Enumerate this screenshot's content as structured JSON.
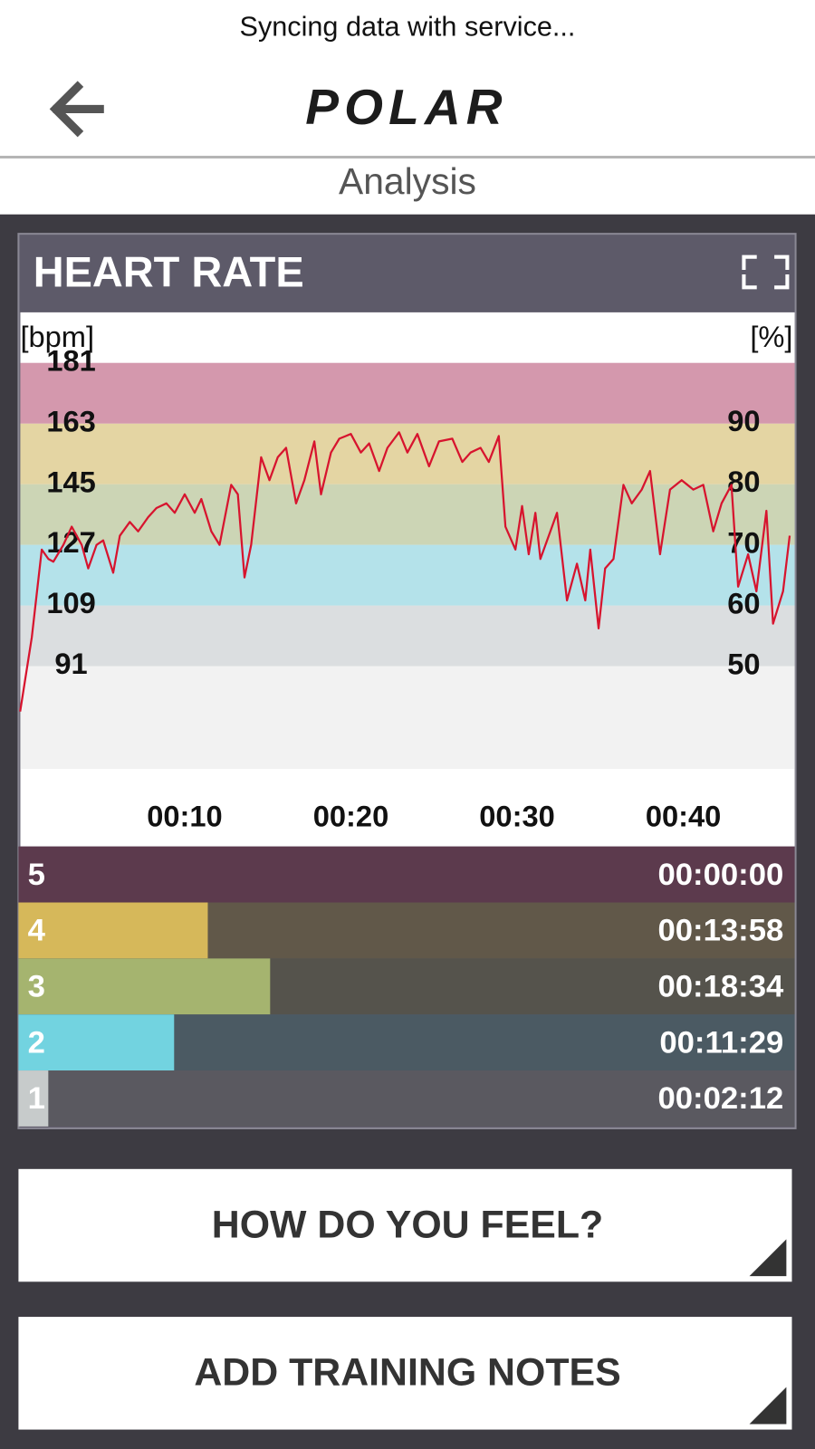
{
  "status": "Syncing data with service...",
  "header": {
    "logo": "POLAR",
    "title": "Analysis"
  },
  "card": {
    "title": "HEART RATE"
  },
  "chart_data": {
    "type": "line",
    "y_label": "[bpm]",
    "y2_label": "[%]",
    "xlim": [
      0,
      46.7
    ],
    "xticks": [
      {
        "value": 10,
        "label": "00:10"
      },
      {
        "value": 20,
        "label": "00:20"
      },
      {
        "value": 30,
        "label": "00:30"
      },
      {
        "value": 40,
        "label": "00:40"
      }
    ],
    "ylim": [
      60.5,
      196
    ],
    "yticks": [
      91,
      109,
      127,
      145,
      163,
      181
    ],
    "y2lim": [
      33.1,
      108.3
    ],
    "y2ticks": [
      50,
      60,
      70,
      80,
      90
    ],
    "band_colors": [
      "#f2f2f2",
      "#dbdee0",
      "#b4e2ea",
      "#ccd5b5",
      "#e4d5a3",
      "#d498ad"
    ],
    "series": [
      {
        "name": "Heart rate",
        "color": "#d7142e",
        "x": [
          0.1,
          0.8,
          1.4,
          1.8,
          2.1,
          2.7,
          3.2,
          3.8,
          4.2,
          4.7,
          5.1,
          5.7,
          6.1,
          6.7,
          7.2,
          7.8,
          8.3,
          8.9,
          9.4,
          10,
          10.6,
          11,
          11.6,
          12.1,
          12.8,
          13.2,
          13.6,
          14,
          14.6,
          15.1,
          15.6,
          16.1,
          16.7,
          17.2,
          17.8,
          18.2,
          18.8,
          19.3,
          20,
          20.6,
          21.1,
          21.7,
          22.2,
          22.9,
          23.4,
          24,
          24.7,
          25.3,
          26.1,
          26.7,
          27.2,
          27.8,
          28.3,
          28.9,
          29.3,
          29.9,
          30.3,
          30.7,
          31.1,
          31.4,
          32,
          32.4,
          33,
          33.6,
          34.1,
          34.4,
          34.9,
          35.3,
          35.8,
          36.4,
          36.9,
          37.5,
          38,
          38.6,
          39.2,
          39.9,
          40.6,
          41.2,
          41.8,
          42.3,
          42.9,
          43.3,
          43.9,
          44.4,
          45,
          45.4,
          46,
          46.4
        ],
        "values": [
          77.5,
          99.5,
          125.6,
          122.8,
          122,
          127,
          132.4,
          127,
          120,
          127,
          128.3,
          118.7,
          129.7,
          133.8,
          131,
          135.2,
          137.9,
          139.3,
          136.5,
          142,
          136.5,
          140.6,
          131,
          127,
          144.8,
          142,
          117.3,
          127,
          153,
          146.2,
          153,
          155.8,
          139.3,
          146.2,
          157.7,
          142,
          154.4,
          158.5,
          159.9,
          154.4,
          157.1,
          148.9,
          155.8,
          160.4,
          154.4,
          159.9,
          150.3,
          157.7,
          158.5,
          151.6,
          154.4,
          155.8,
          151.6,
          159.3,
          132.4,
          125.6,
          138.5,
          124.2,
          136.5,
          122.8,
          131,
          136.5,
          110.5,
          121.4,
          110.5,
          125.6,
          102.2,
          120,
          122.8,
          144.8,
          139.3,
          143.4,
          148.9,
          124.2,
          143.4,
          146.2,
          143.4,
          144.8,
          131,
          139.3,
          144.8,
          114.6,
          124.2,
          113.2,
          137.1,
          103.6,
          113.2,
          129.7
        ]
      }
    ]
  },
  "zones": {
    "labels": [
      "5",
      "4",
      "3",
      "2",
      "1"
    ],
    "values": [
      0,
      838,
      1114,
      689,
      132
    ],
    "value_labels": [
      "00:00:00",
      "00:13:58",
      "00:18:34",
      "00:11:29",
      "00:02:12"
    ],
    "xlim": [
      0,
      3436
    ],
    "colors": [
      "#a0557a",
      "#d6b85a",
      "#a5b46f",
      "#72d3e0",
      "#c7cbcb"
    ],
    "track_colors": [
      "#5c3a4d",
      "#615849",
      "#55534c",
      "#4b5a63",
      "#5a5960"
    ]
  },
  "buttons": [
    "HOW DO YOU FEEL?",
    "ADD TRAINING NOTES"
  ]
}
